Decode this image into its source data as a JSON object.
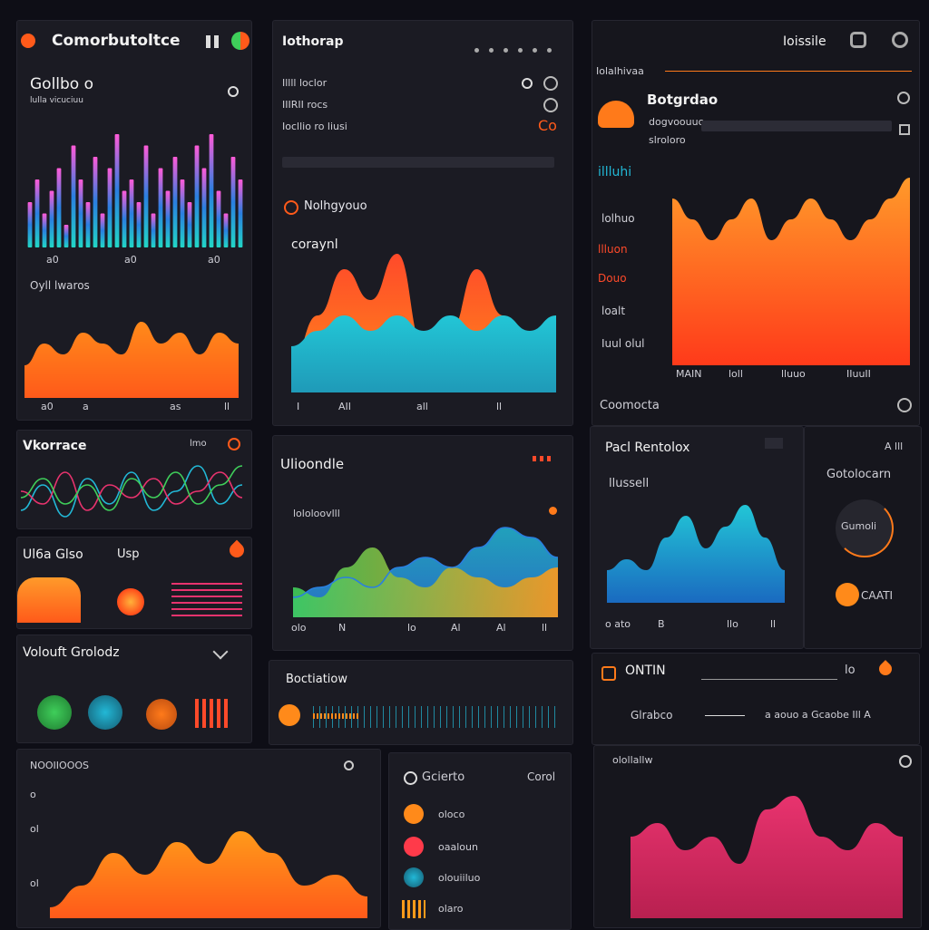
{
  "colors": {
    "background": "#0e0e16",
    "panel": "#1b1b23",
    "orange": "#ff7a1a",
    "red": "#ff4a2a",
    "cyan": "#22b8d6",
    "blue": "#2a7fe0",
    "pink": "#e8336e",
    "green": "#3fce5a"
  },
  "panel_a": {
    "title": "Comorbutoltce",
    "header": "Gollbo o",
    "subheader": "lulla vicuciuu",
    "legend": "Oyll lwaros",
    "ticks_top": [
      "a0",
      "a0",
      "a0"
    ],
    "ticks_bottom": [
      "a0",
      "a",
      "as",
      "ll"
    ]
  },
  "panel_b": {
    "title": "Iothorap",
    "rows": [
      "Illll loclor",
      "IIIRII rocs",
      "Iocllio ro liusi"
    ],
    "row_badge": "Co",
    "subtitle": "Nolhgyouo",
    "label": "coraynl",
    "ticks": [
      "I",
      "AII",
      "all",
      "ll"
    ]
  },
  "panel_c": {
    "title": "Ioissile",
    "section": "Iolalhivaa",
    "header": "Botgrdao",
    "subheader_1": "dogvoouuo",
    "subheader_2": "slroloro",
    "labels": [
      "illluhi",
      "lolhuo",
      "llluon",
      "Douo",
      "loalt",
      "Iuul olul"
    ],
    "ticks": [
      "MAIN",
      "loll",
      "lluuo",
      "IIuuII"
    ],
    "footer": "Coomocta"
  },
  "panel_d": {
    "title": "Vkorrace",
    "badge": "lmo"
  },
  "panel_e": {
    "title": "Ul6a Glso",
    "badge": "Usp"
  },
  "panel_f": {
    "title": "Volouft Grolodz"
  },
  "panel_g": {
    "title": "Ulioondle",
    "subtitle": "lololoovlll",
    "ticks": [
      "olo",
      "N",
      "lo",
      "Al",
      "Al",
      "ll"
    ]
  },
  "panel_h": {
    "title": "Pacl Rentolox",
    "badge": "A lll",
    "subtitle": "llussell",
    "ticks": [
      "o ato",
      "B",
      "llo",
      "ll"
    ]
  },
  "panel_i": {
    "title": "Gotolocarn",
    "gauge_1": "Gumoli",
    "gauge_2": "CAATI"
  },
  "panel_j": {
    "title": "Boctiatiow"
  },
  "panel_k": {
    "title": "ONTIN",
    "badge": "lo",
    "row_label": "Glrabco",
    "row_right": "a aouo a Gcaobe Ill A"
  },
  "panel_l": {
    "title": "NOOIIOOOS",
    "ticks": [
      "o",
      "ol",
      "ol"
    ]
  },
  "panel_m": {
    "title": "Gcierto",
    "badge": "Corol",
    "items": [
      "oloco",
      "oaaloun",
      "olouiiluo",
      "olaro"
    ]
  },
  "panel_n": {
    "title": "olollallw"
  },
  "chart_data": [
    {
      "type": "bar",
      "values": [
        4,
        6,
        3,
        5,
        7,
        2,
        9,
        6,
        4,
        8,
        3,
        7,
        10,
        5,
        6,
        4,
        9,
        3,
        7,
        5,
        8,
        6,
        4,
        9,
        7,
        10,
        5,
        3,
        8,
        6
      ],
      "ylim": [
        0,
        10
      ]
    },
    {
      "type": "area",
      "values": [
        3,
        5,
        4,
        6,
        5,
        4,
        7,
        5,
        6,
        4,
        6,
        5
      ],
      "ylim": [
        0,
        10
      ]
    },
    {
      "type": "area",
      "series": [
        {
          "values": [
            2,
            5,
            8,
            6,
            9,
            3,
            4,
            8,
            5,
            2,
            3
          ]
        },
        {
          "values": [
            3,
            4,
            5,
            4,
            5,
            4,
            5,
            4,
            5,
            4,
            5
          ]
        }
      ],
      "ylim": [
        0,
        10
      ]
    },
    {
      "type": "area",
      "values": [
        8,
        7,
        6,
        7,
        8,
        6,
        7,
        8,
        7,
        6,
        7,
        8,
        9
      ],
      "ylim": [
        0,
        10
      ]
    },
    {
      "type": "line",
      "series": [
        {
          "values": [
            2,
            6,
            1,
            7,
            3,
            8,
            2,
            5,
            9,
            3,
            6
          ]
        },
        {
          "values": [
            5,
            3,
            8,
            2,
            6,
            4,
            7,
            3,
            5,
            8,
            4
          ]
        },
        {
          "values": [
            4,
            7,
            3,
            6,
            2,
            7,
            4,
            8,
            3,
            6,
            9
          ]
        }
      ],
      "ylim": [
        0,
        10
      ]
    },
    {
      "type": "area",
      "series": [
        {
          "values": [
            2,
            3,
            4,
            3,
            5,
            6,
            5,
            7,
            9,
            8,
            6
          ]
        },
        {
          "values": [
            3,
            2,
            5,
            7,
            4,
            3,
            5,
            4,
            3,
            4,
            5
          ]
        }
      ],
      "ylim": [
        0,
        10
      ]
    },
    {
      "type": "area",
      "values": [
        3,
        4,
        3,
        6,
        8,
        5,
        7,
        9,
        6,
        3
      ],
      "ylim": [
        0,
        10
      ]
    },
    {
      "type": "area",
      "values": [
        1,
        3,
        6,
        4,
        7,
        5,
        8,
        6,
        3,
        4,
        2
      ],
      "ylim": [
        0,
        10
      ]
    },
    {
      "type": "area",
      "values": [
        6,
        7,
        5,
        6,
        4,
        8,
        9,
        6,
        5,
        7,
        6
      ],
      "ylim": [
        0,
        10
      ]
    }
  ]
}
